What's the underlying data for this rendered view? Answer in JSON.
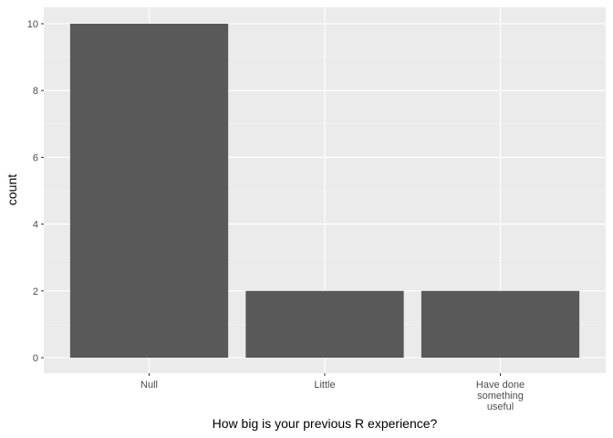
{
  "chart_data": {
    "type": "bar",
    "categories": [
      "Null",
      "Little",
      "Have done something useful"
    ],
    "category_label_lines": [
      [
        "Null"
      ],
      [
        "Little"
      ],
      [
        "Have done",
        "something",
        "useful"
      ]
    ],
    "values": [
      10,
      2,
      2
    ],
    "xlabel": "How big is your previous R experience?",
    "ylabel": "count",
    "ylim": [
      0,
      10
    ],
    "yticks": [
      0,
      2,
      4,
      6,
      8,
      10
    ],
    "grid": true,
    "colors": {
      "bar": "#595959",
      "panel": "#ebebeb",
      "grid": "#ffffff"
    }
  }
}
